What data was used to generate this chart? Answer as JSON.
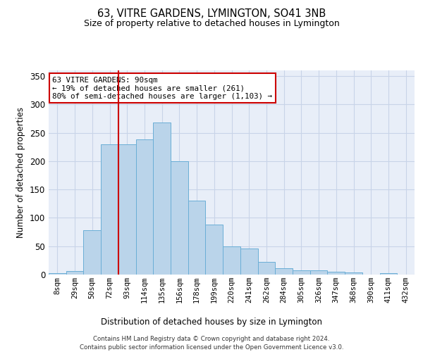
{
  "title": "63, VITRE GARDENS, LYMINGTON, SO41 3NB",
  "subtitle": "Size of property relative to detached houses in Lymington",
  "xlabel": "Distribution of detached houses by size in Lymington",
  "ylabel": "Number of detached properties",
  "categories": [
    "8sqm",
    "29sqm",
    "50sqm",
    "72sqm",
    "93sqm",
    "114sqm",
    "135sqm",
    "156sqm",
    "178sqm",
    "199sqm",
    "220sqm",
    "241sqm",
    "262sqm",
    "284sqm",
    "305sqm",
    "326sqm",
    "347sqm",
    "368sqm",
    "390sqm",
    "411sqm",
    "432sqm"
  ],
  "values": [
    2,
    6,
    78,
    230,
    230,
    238,
    268,
    200,
    130,
    88,
    50,
    46,
    22,
    11,
    8,
    8,
    5,
    4,
    0,
    2,
    0
  ],
  "bar_color": "#bad4ea",
  "bar_edge_color": "#6aaed6",
  "marker_line_color": "#cc0000",
  "marker_index": 4,
  "annotation_line1": "63 VITRE GARDENS: 90sqm",
  "annotation_line2": "← 19% of detached houses are smaller (261)",
  "annotation_line3": "80% of semi-detached houses are larger (1,103) →",
  "annotation_box_color": "#cc0000",
  "grid_color": "#c8d4e8",
  "bg_color": "#e8eef8",
  "footer_line1": "Contains HM Land Registry data © Crown copyright and database right 2024.",
  "footer_line2": "Contains public sector information licensed under the Open Government Licence v3.0.",
  "ylim": [
    0,
    360
  ],
  "yticks": [
    0,
    50,
    100,
    150,
    200,
    250,
    300,
    350
  ]
}
